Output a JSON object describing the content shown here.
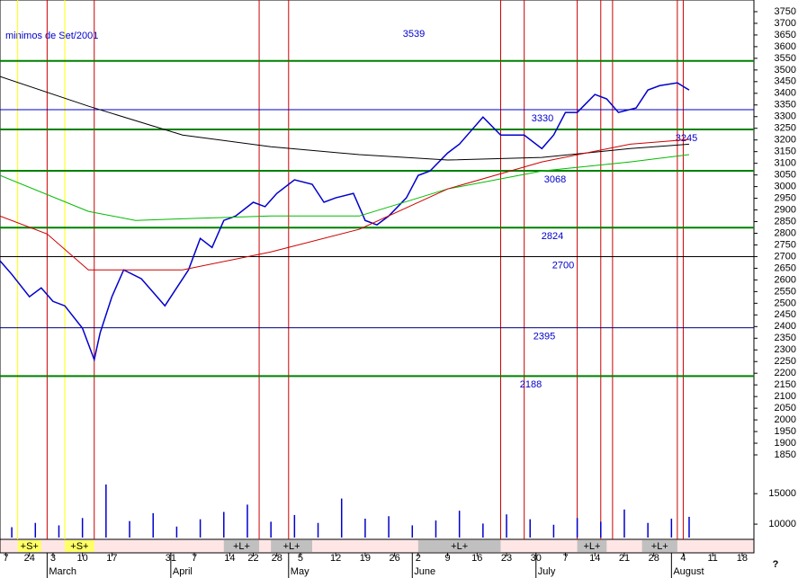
{
  "chart_data": {
    "type": "line",
    "annotation": "minimos de Set/2001",
    "help": "?",
    "xlim": [
      0,
      128
    ],
    "ylim": [
      1800,
      3800
    ],
    "yticks": [
      1850,
      1900,
      1950,
      2000,
      2050,
      2100,
      2150,
      2200,
      2250,
      2300,
      2350,
      2400,
      2450,
      2500,
      2550,
      2600,
      2650,
      2700,
      2750,
      2800,
      2850,
      2900,
      2950,
      3000,
      3050,
      3100,
      3150,
      3200,
      3250,
      3300,
      3350,
      3400,
      3450,
      3500,
      3550,
      3600,
      3650,
      3700,
      3750
    ],
    "xticks": [
      {
        "value": 1,
        "label": "7"
      },
      {
        "value": 5,
        "label": "24"
      },
      {
        "value": 9,
        "label": "3"
      },
      {
        "value": 14,
        "label": "10"
      },
      {
        "value": 19,
        "label": "17"
      },
      {
        "value": 29,
        "label": "31"
      },
      {
        "value": 33,
        "label": "7"
      },
      {
        "value": 39,
        "label": "14"
      },
      {
        "value": 43,
        "label": "22"
      },
      {
        "value": 47,
        "label": "28"
      },
      {
        "value": 51,
        "label": "5"
      },
      {
        "value": 57,
        "label": "12"
      },
      {
        "value": 62,
        "label": "19"
      },
      {
        "value": 67,
        "label": "26"
      },
      {
        "value": 71,
        "label": "2"
      },
      {
        "value": 76,
        "label": "9"
      },
      {
        "value": 81,
        "label": "16"
      },
      {
        "value": 86,
        "label": "23"
      },
      {
        "value": 91,
        "label": "30"
      },
      {
        "value": 96,
        "label": "7"
      },
      {
        "value": 101,
        "label": "14"
      },
      {
        "value": 106,
        "label": "21"
      },
      {
        "value": 111,
        "label": "28"
      },
      {
        "value": 116,
        "label": "4"
      },
      {
        "value": 121,
        "label": "11"
      },
      {
        "value": 126,
        "label": "18"
      }
    ],
    "months": [
      {
        "value": 8,
        "label": "March"
      },
      {
        "value": 29,
        "label": "April"
      },
      {
        "value": 49,
        "label": "May"
      },
      {
        "value": 70,
        "label": "June"
      },
      {
        "value": 91,
        "label": "July"
      },
      {
        "value": 114,
        "label": "August"
      }
    ],
    "series": [
      {
        "color": "#0000cc",
        "x": [
          0,
          2,
          5,
          7,
          9,
          11,
          14,
          16,
          17,
          19,
          21,
          24,
          26,
          28,
          30,
          32,
          34,
          36,
          38,
          40,
          43,
          45,
          47,
          50,
          53,
          55,
          57,
          60,
          62,
          64,
          66,
          69,
          71,
          73,
          76,
          78,
          80,
          82,
          85,
          87,
          89,
          92,
          94,
          96,
          98,
          101,
          103,
          105,
          108,
          110,
          112,
          115,
          117
        ],
        "values": [
          2682,
          2624,
          2528,
          2566,
          2508,
          2489,
          2393,
          2258,
          2373,
          2528,
          2643,
          2605,
          2547,
          2489,
          2566,
          2643,
          2778,
          2739,
          2855,
          2874,
          2933,
          2914,
          2971,
          3029,
          3010,
          2933,
          2952,
          2971,
          2855,
          2836,
          2874,
          2952,
          3048,
          3067,
          3144,
          3182,
          3240,
          3298,
          3221,
          3221,
          3221,
          3163,
          3221,
          3318,
          3318,
          3395,
          3376,
          3318,
          3337,
          3414,
          3433,
          3445,
          3414
        ]
      },
      {
        "color": "#000000",
        "x": [
          0,
          15,
          31,
          46,
          61,
          76,
          92,
          107,
          117
        ],
        "values": [
          3472,
          3345,
          3221,
          3171,
          3137,
          3114,
          3125,
          3163,
          3182
        ]
      },
      {
        "color": "#00bb00",
        "x": [
          0,
          15,
          23,
          31,
          46,
          61,
          76,
          92,
          107,
          117
        ],
        "values": [
          3048,
          2894,
          2855,
          2862,
          2874,
          2874,
          2990,
          3067,
          3106,
          3137
        ]
      },
      {
        "color": "#cc0000",
        "x": [
          0,
          8,
          15,
          23,
          31,
          46,
          61,
          76,
          92,
          107,
          117
        ],
        "values": [
          2874,
          2797,
          2643,
          2643,
          2643,
          2720,
          2817,
          2990,
          3106,
          3182,
          3202
        ]
      }
    ],
    "levels": [
      {
        "value": 3539,
        "color": "#008000"
      },
      {
        "value": 3330,
        "color": "#0000cc"
      },
      {
        "value": 3245,
        "color": "#008000"
      },
      {
        "value": 3068,
        "color": "#008000"
      },
      {
        "value": 2824,
        "color": "#008000"
      },
      {
        "value": 2700,
        "color": "#000000"
      },
      {
        "value": 2395,
        "color": "#000080"
      },
      {
        "value": 2188,
        "color": "#008000"
      }
    ],
    "red_lines": [
      8,
      16,
      44,
      49,
      85,
      89,
      98,
      102,
      104,
      115,
      116
    ],
    "yellow_lines": [
      3,
      11
    ],
    "volume": {
      "ylim": [
        7800,
        19300
      ],
      "yticks": [
        10000,
        15000
      ],
      "color": "#0000cc",
      "x": [
        2,
        6,
        10,
        14,
        18,
        22,
        26,
        30,
        34,
        38,
        42,
        46,
        50,
        54,
        58,
        62,
        66,
        70,
        74,
        78,
        82,
        86,
        90,
        94,
        98,
        102,
        106,
        110,
        114,
        117
      ],
      "values": [
        9500,
        10200,
        9800,
        11000,
        16500,
        10500,
        11800,
        9600,
        10800,
        12000,
        13200,
        10400,
        11500,
        10200,
        14200,
        10900,
        11300,
        9800,
        10600,
        12200,
        10100,
        11600,
        10800,
        9900,
        11000,
        10400,
        12400,
        10200,
        10900,
        11200
      ]
    },
    "signals": [
      {
        "label": "+S+",
        "from": 3,
        "to": 7
      },
      {
        "label": "+S+",
        "from": 11,
        "to": 16
      },
      {
        "label": "+L+",
        "from": 38,
        "to": 44
      },
      {
        "label": "+L+",
        "from": 46,
        "to": 53
      },
      {
        "label": "+L+",
        "from": 71,
        "to": 85
      },
      {
        "label": "+L+",
        "from": 98,
        "to": 103
      },
      {
        "label": "+L+",
        "from": 109,
        "to": 115
      }
    ]
  }
}
